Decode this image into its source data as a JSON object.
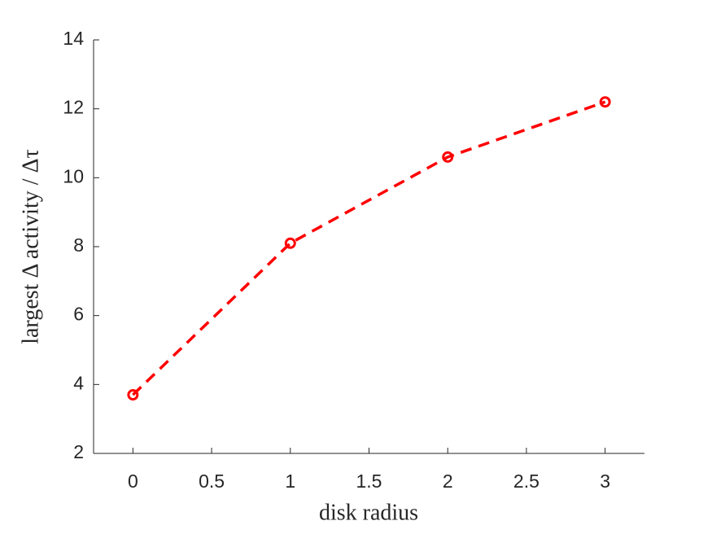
{
  "chart_data": {
    "type": "line",
    "x_label": "disk radius",
    "y_label": "largest Δ activity / Δτ",
    "x": [
      0,
      1,
      2,
      3
    ],
    "values": [
      3.7,
      8.1,
      10.6,
      12.2
    ],
    "color": "#ff0000",
    "line_style": "dashed",
    "marker": "circle",
    "xlim": [
      -0.25,
      3.25
    ],
    "xticks": [
      0,
      0.5,
      1,
      1.5,
      2,
      2.5,
      3
    ],
    "ylim": [
      2,
      14
    ],
    "yticks": [
      2,
      4,
      6,
      8,
      10,
      12,
      14
    ],
    "grid": false
  }
}
